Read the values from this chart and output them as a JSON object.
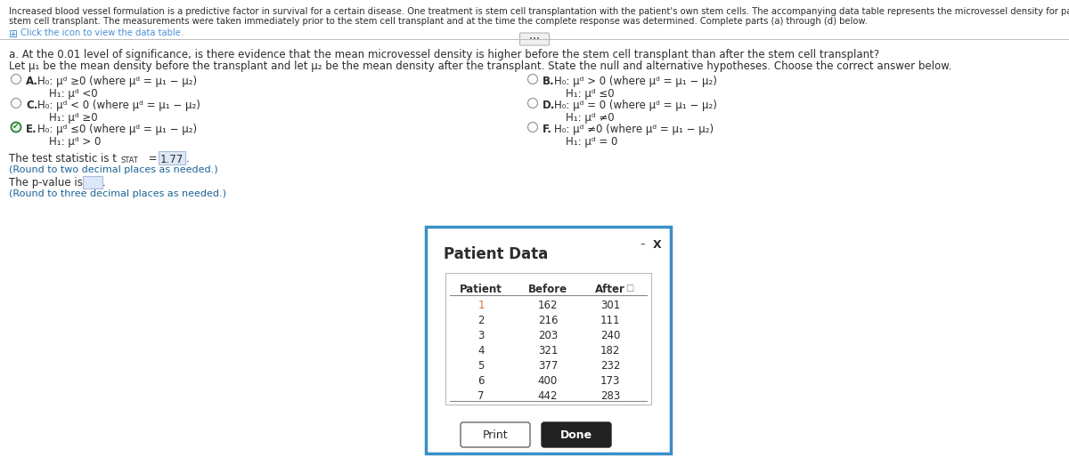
{
  "bg_color": "#ffffff",
  "intro_text": "Increased blood vessel formulation is a predictive factor in survival for a certain disease. One treatment is stem cell transplantation with the patient's own stem cells. The accompanying data table represents the microvessel density for patients who had a complete response to t",
  "intro_text2": "stem cell transplant. The measurements were taken immediately prior to the stem cell transplant and at the time the complete response was determined. Complete parts (a) through (d) below.",
  "click_text": "Click the icon to view the data table.",
  "question_a": "a. At the 0.01 level of significance, is there evidence that the mean microvessel density is higher before the stem cell transplant than after the stem cell transplant?",
  "let_text": "Let μ₁ be the mean density before the transplant and let μ₂ be the mean density after the transplant. State the null and alternative hypotheses. Choose the correct answer below.",
  "opt_A_h0": "H₀: μᵈ ≥0 (where μᵈ = μ₁ − μ₂)",
  "opt_A_h1": "H₁: μᵈ <0",
  "opt_B_h0": "H₀: μᵈ > 0 (where μᵈ = μ₁ − μ₂)",
  "opt_B_h1": "H₁: μᵈ ≤0",
  "opt_C_h0": "H₀: μᵈ < 0 (where μᵈ = μ₁ − μ₂)",
  "opt_C_h1": "H₁: μᵈ ≥0",
  "opt_D_h0": "H₀: μᵈ = 0 (where μᵈ = μ₁ − μ₂)",
  "opt_D_h1": "H₁: μᵈ ≠0",
  "opt_E_h0": "H₀: μᵈ ≤0 (where μᵈ = μ₁ − μ₂)",
  "opt_E_h1": "H₁: μᵈ > 0",
  "opt_F_h0": "H₀: μᵈ ≠0 (where μᵈ = μ₁ − μ₂)",
  "opt_F_h1": "H₁: μᵈ = 0",
  "round2": "(Round to two decimal places as needed.)",
  "round3": "(Round to three decimal places as needed.)",
  "dialog_title": "Patient Data",
  "patients": [
    1,
    2,
    3,
    4,
    5,
    6,
    7
  ],
  "before": [
    162,
    216,
    203,
    321,
    377,
    400,
    442
  ],
  "after": [
    301,
    111,
    240,
    182,
    232,
    173,
    283
  ],
  "text_color": "#2c2c2c",
  "blue_text": "#1a6496",
  "orange_text": "#c87941",
  "link_color": "#4a90d9",
  "dialog_border": "#3a8fc7",
  "selected_green": "#2e7d32",
  "tstat_value": "1.77"
}
